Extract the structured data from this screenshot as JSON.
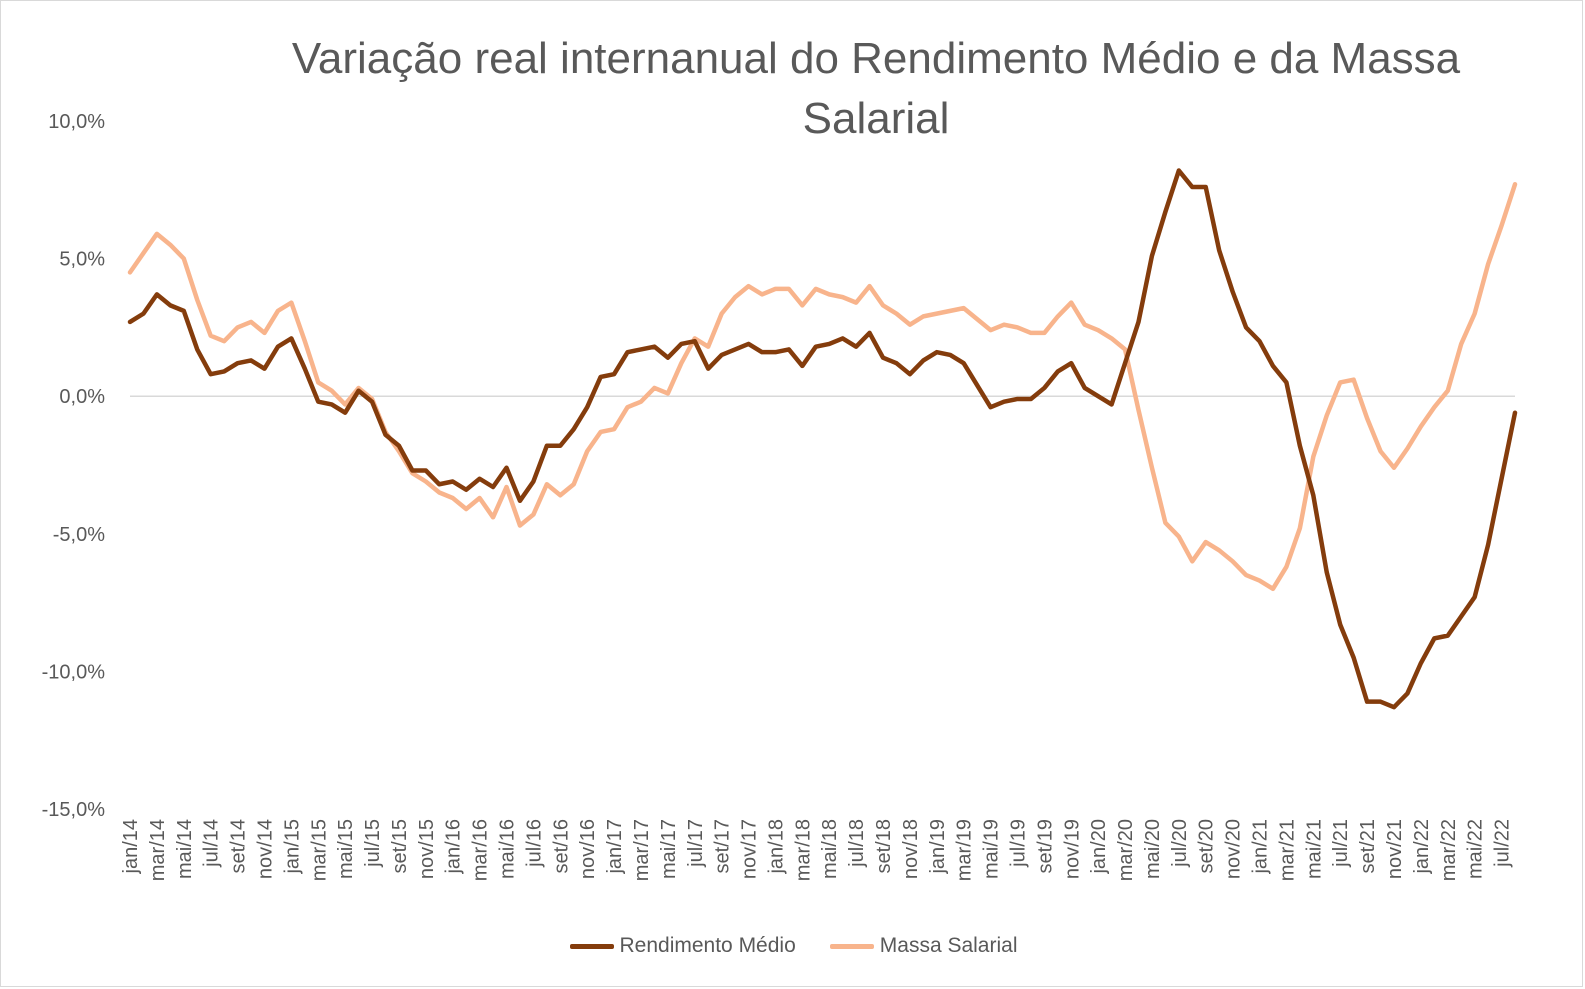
{
  "chart_data": {
    "type": "line",
    "title": "Variação real internanual do Rendimento Médio e da Massa Salarial",
    "xlabel": "",
    "ylabel": "",
    "ylim": [
      -15,
      10
    ],
    "yticks": [
      10,
      5,
      0,
      -5,
      -10,
      -15
    ],
    "ytick_labels": [
      "10,0%",
      "5,0%",
      "0,0%",
      "-5,0%",
      "-10,0%",
      "-15,0%"
    ],
    "grid": "zero line only",
    "legend_position": "bottom",
    "x_labels_every": 2,
    "categories": [
      "jan/14",
      "fev/14",
      "mar/14",
      "abr/14",
      "mai/14",
      "jun/14",
      "jul/14",
      "ago/14",
      "set/14",
      "out/14",
      "nov/14",
      "dez/14",
      "jan/15",
      "fev/15",
      "mar/15",
      "abr/15",
      "mai/15",
      "jun/15",
      "jul/15",
      "ago/15",
      "set/15",
      "out/15",
      "nov/15",
      "dez/15",
      "jan/16",
      "fev/16",
      "mar/16",
      "abr/16",
      "mai/16",
      "jun/16",
      "jul/16",
      "ago/16",
      "set/16",
      "out/16",
      "nov/16",
      "dez/16",
      "jan/17",
      "fev/17",
      "mar/17",
      "abr/17",
      "mai/17",
      "jun/17",
      "jul/17",
      "ago/17",
      "set/17",
      "out/17",
      "nov/17",
      "dez/17",
      "jan/18",
      "fev/18",
      "mar/18",
      "abr/18",
      "mai/18",
      "jun/18",
      "jul/18",
      "ago/18",
      "set/18",
      "out/18",
      "nov/18",
      "dez/18",
      "jan/19",
      "fev/19",
      "mar/19",
      "abr/19",
      "mai/19",
      "jun/19",
      "jul/19",
      "ago/19",
      "set/19",
      "out/19",
      "nov/19",
      "dez/19",
      "jan/20",
      "fev/20",
      "mar/20",
      "abr/20",
      "mai/20",
      "jun/20",
      "jul/20",
      "ago/20",
      "set/20",
      "out/20",
      "nov/20",
      "dez/20",
      "jan/21",
      "fev/21",
      "mar/21",
      "abr/21",
      "mai/21",
      "jun/21",
      "jul/21",
      "ago/21",
      "set/21",
      "out/21",
      "nov/21",
      "dez/21",
      "jan/22",
      "fev/22",
      "mar/22",
      "abr/22",
      "mai/22",
      "jun/22",
      "jul/22",
      "ago/22"
    ],
    "series": [
      {
        "name": "Rendimento Médio",
        "color": "#843c0c",
        "values": [
          2.7,
          3.0,
          3.7,
          3.3,
          3.1,
          1.7,
          0.8,
          0.9,
          1.2,
          1.3,
          1.0,
          1.8,
          2.1,
          1.0,
          -0.2,
          -0.3,
          -0.6,
          0.2,
          -0.2,
          -1.4,
          -1.8,
          -2.7,
          -2.7,
          -3.2,
          -3.1,
          -3.4,
          -3.0,
          -3.3,
          -2.6,
          -3.8,
          -3.1,
          -1.8,
          -1.8,
          -1.2,
          -0.4,
          0.7,
          0.8,
          1.6,
          1.7,
          1.8,
          1.4,
          1.9,
          2.0,
          1.0,
          1.5,
          1.7,
          1.9,
          1.6,
          1.6,
          1.7,
          1.1,
          1.8,
          1.9,
          2.1,
          1.8,
          2.3,
          1.4,
          1.2,
          0.8,
          1.3,
          1.6,
          1.5,
          1.2,
          0.4,
          -0.4,
          -0.2,
          -0.1,
          -0.1,
          0.3,
          0.9,
          1.2,
          0.3,
          0.0,
          -0.3,
          1.2,
          2.7,
          5.1,
          6.7,
          8.2,
          7.6,
          7.6,
          5.3,
          3.8,
          2.5,
          2.0,
          1.1,
          0.5,
          -1.8,
          -3.6,
          -6.4,
          -8.3,
          -9.5,
          -11.1,
          -11.1,
          -11.3,
          -10.8,
          -9.7,
          -8.8,
          -8.7,
          -8.0,
          -7.3,
          -5.4,
          -3.0,
          -0.6
        ]
      },
      {
        "name": "Massa Salarial",
        "color": "#f8b48c",
        "values": [
          4.5,
          5.2,
          5.9,
          5.5,
          5.0,
          3.5,
          2.2,
          2.0,
          2.5,
          2.7,
          2.3,
          3.1,
          3.4,
          2.0,
          0.5,
          0.2,
          -0.3,
          0.3,
          -0.1,
          -1.3,
          -2.0,
          -2.8,
          -3.1,
          -3.5,
          -3.7,
          -4.1,
          -3.7,
          -4.4,
          -3.3,
          -4.7,
          -4.3,
          -3.2,
          -3.6,
          -3.2,
          -2.0,
          -1.3,
          -1.2,
          -0.4,
          -0.2,
          0.3,
          0.1,
          1.2,
          2.1,
          1.8,
          3.0,
          3.6,
          4.0,
          3.7,
          3.9,
          3.9,
          3.3,
          3.9,
          3.7,
          3.6,
          3.4,
          4.0,
          3.3,
          3.0,
          2.6,
          2.9,
          3.0,
          3.1,
          3.2,
          2.8,
          2.4,
          2.6,
          2.5,
          2.3,
          2.3,
          2.9,
          3.4,
          2.6,
          2.4,
          2.1,
          1.7,
          -0.5,
          -2.6,
          -4.6,
          -5.1,
          -6.0,
          -5.3,
          -5.6,
          -6.0,
          -6.5,
          -6.7,
          -7.0,
          -6.2,
          -4.8,
          -2.2,
          -0.7,
          0.5,
          0.6,
          -0.8,
          -2.0,
          -2.6,
          -1.9,
          -1.1,
          -0.4,
          0.2,
          1.9,
          3.0,
          4.8,
          6.2,
          7.7
        ]
      }
    ]
  },
  "legend": {
    "item1": "Rendimento Médio",
    "item2": "Massa Salarial"
  }
}
